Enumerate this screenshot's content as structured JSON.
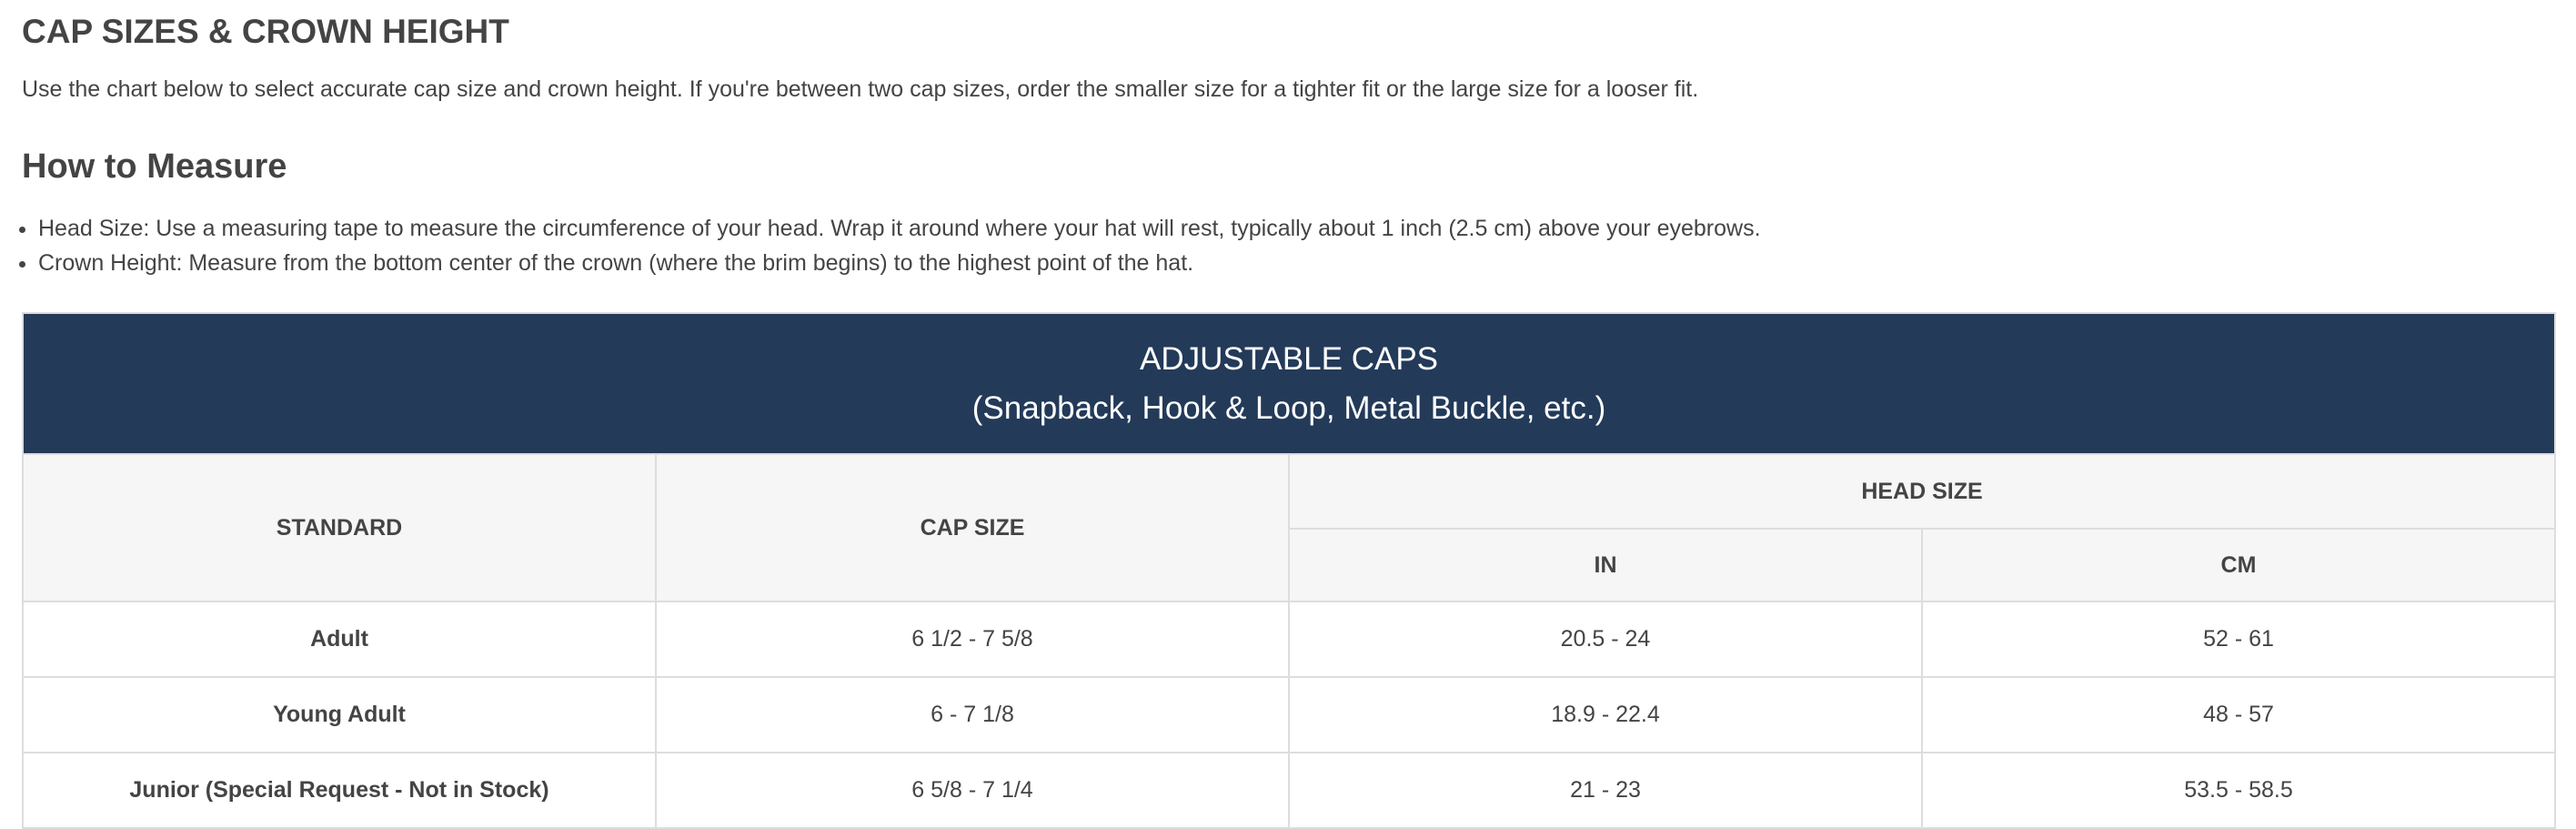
{
  "title": "CAP SIZES & CROWN HEIGHT",
  "intro": "Use the chart below to select accurate cap size and crown height. If you're between two cap sizes, order the smaller size for a tighter fit or the large size for a looser fit.",
  "how_to": {
    "heading": "How to Measure",
    "items": [
      "Head Size: Use a measuring tape to measure the circumference of your head. Wrap it around where your hat will rest, typically about 1 inch (2.5 cm) above your eyebrows.",
      "Crown Height: Measure from the bottom center of the crown (where the brim begins) to the highest point of the hat."
    ]
  },
  "table": {
    "title": "ADJUSTABLE CAPS",
    "subtitle": "(Snapback, Hook & Loop, Metal Buckle, etc.)",
    "banner_color": "#233a59",
    "headers": {
      "standard": "STANDARD",
      "cap_size": "CAP SIZE",
      "head_size": "HEAD SIZE",
      "in": "IN",
      "cm": "CM"
    },
    "rows": [
      {
        "standard": "Adult",
        "cap_size": "6 1/2 - 7 5/8",
        "in": "20.5 - 24",
        "cm": "52 - 61"
      },
      {
        "standard": "Young Adult",
        "cap_size": "6 - 7 1/8",
        "in": "18.9 - 22.4",
        "cm": "48 - 57"
      },
      {
        "standard": "Junior (Special Request - Not in Stock)",
        "cap_size": "6 5/8 - 7 1/4",
        "in": "21 - 23",
        "cm": "53.5 - 58.5"
      }
    ]
  }
}
